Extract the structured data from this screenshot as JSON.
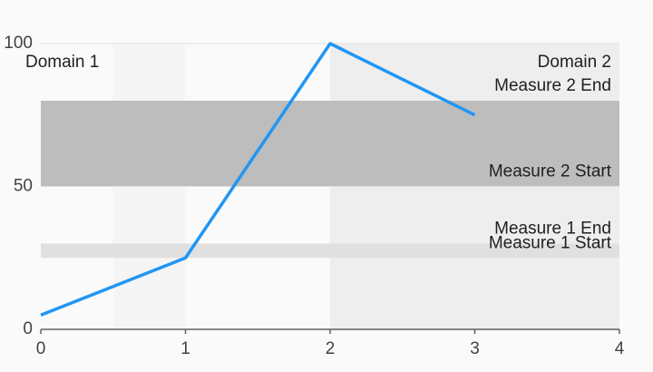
{
  "chart_data": {
    "type": "line",
    "title": "",
    "xlabel": "",
    "ylabel": "",
    "xlim": [
      0,
      4
    ],
    "ylim": [
      0,
      100
    ],
    "x_ticks": [
      0,
      1,
      2,
      3,
      4
    ],
    "y_ticks": [
      0,
      50,
      100
    ],
    "series": [
      {
        "x": [
          0,
          1,
          2,
          3
        ],
        "values": [
          5,
          25,
          100,
          75
        ]
      }
    ],
    "line_color": "#2196f3",
    "grid": true,
    "domain_ranges": [
      {
        "start": 0.5,
        "end": 1,
        "color": "#f5f5f5",
        "label": "Domain 1",
        "label_position": "top-left"
      },
      {
        "start": 2,
        "end": 4,
        "color": "#eeeeee",
        "label": "Domain 2",
        "label_position": "top-right"
      }
    ],
    "measure_ranges": [
      {
        "start": 25,
        "end": 30,
        "color": "#e0e0e0",
        "start_label": "Measure 1 Start",
        "end_label": "Measure 1 End"
      },
      {
        "start": 50,
        "end": 80,
        "color": "#bdbdbd",
        "start_label": "Measure 2 Start",
        "end_label": "Measure 2 End"
      }
    ]
  }
}
